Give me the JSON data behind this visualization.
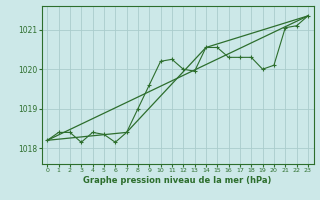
{
  "background_color": "#cce8e8",
  "plot_bg_color": "#cce8e8",
  "grid_color": "#aacccc",
  "line_color": "#2d6e2d",
  "xlabel": "Graphe pression niveau de la mer (hPa)",
  "ylim": [
    1017.6,
    1021.6
  ],
  "xlim": [
    -0.5,
    23.5
  ],
  "yticks": [
    1018,
    1019,
    1020,
    1021
  ],
  "xticks": [
    0,
    1,
    2,
    3,
    4,
    5,
    6,
    7,
    8,
    9,
    10,
    11,
    12,
    13,
    14,
    15,
    16,
    17,
    18,
    19,
    20,
    21,
    22,
    23
  ],
  "series1_x": [
    0,
    1,
    2,
    3,
    4,
    5,
    6,
    7,
    8,
    9,
    10,
    11,
    12,
    13,
    14,
    15,
    16,
    17,
    18,
    19,
    20,
    21,
    22,
    23
  ],
  "series1_y": [
    1018.2,
    1018.4,
    1018.4,
    1018.15,
    1018.4,
    1018.35,
    1018.15,
    1018.4,
    1019.0,
    1019.6,
    1020.2,
    1020.25,
    1020.0,
    1019.95,
    1020.55,
    1020.55,
    1020.3,
    1020.3,
    1020.3,
    1020.0,
    1020.1,
    1021.05,
    1021.1,
    1021.35
  ],
  "series2_x": [
    0,
    7,
    14,
    23
  ],
  "series2_y": [
    1018.2,
    1018.4,
    1020.55,
    1021.35
  ],
  "series3_x": [
    0,
    23
  ],
  "series3_y": [
    1018.2,
    1021.35
  ]
}
